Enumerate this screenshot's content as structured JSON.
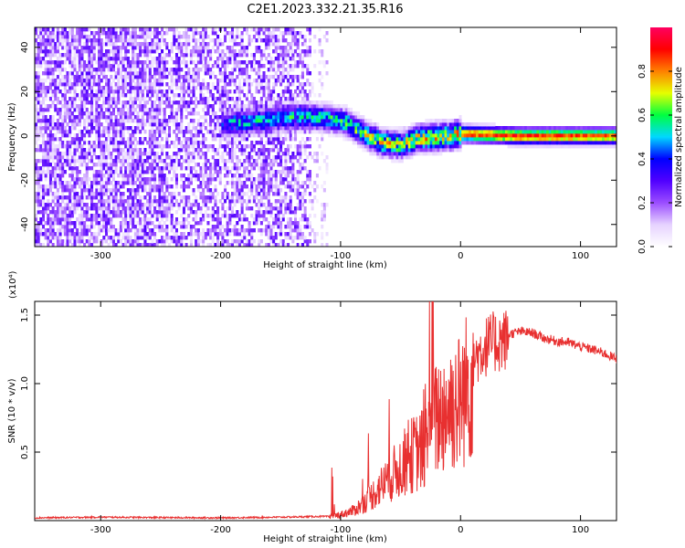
{
  "title": "C2E1.2023.332.21.35.R16",
  "chart_data": [
    {
      "type": "heatmap",
      "xlabel": "Height of straight line (km)",
      "ylabel": "Frequency (Hz)",
      "xlim": [
        -355,
        130
      ],
      "ylim": [
        -50,
        49
      ],
      "x_ticks": [
        -300,
        -200,
        -100,
        0,
        100
      ],
      "y_ticks": [
        40,
        20,
        0,
        -20,
        -40
      ],
      "colorbar": {
        "label": "Normalized spectral amplitude",
        "range": [
          0,
          1
        ],
        "ticks": [
          0.0,
          0.2,
          0.4,
          0.6,
          0.8
        ],
        "colormap": [
          "#ffffff",
          "#e6d2ff",
          "#9b4dff",
          "#5000ff",
          "#0000ff",
          "#00d8ff",
          "#00ff40",
          "#e6ff00",
          "#ff8000",
          "#ff0000",
          "#ff0060"
        ]
      },
      "features": {
        "noise_region_x": [
          -355,
          -125
        ],
        "sparse_region_x": [
          -125,
          -110
        ],
        "empty_region_x": [
          -110,
          -90
        ],
        "signal_track": [
          {
            "x": -200,
            "freq": 5,
            "amp": 0.35
          },
          {
            "x": -190,
            "freq": 6,
            "amp": 0.5
          },
          {
            "x": -130,
            "freq": 9,
            "amp": 0.55
          },
          {
            "x": -110,
            "freq": 8,
            "amp": 0.55
          },
          {
            "x": -95,
            "freq": 6,
            "amp": 0.6
          },
          {
            "x": -80,
            "freq": 1,
            "amp": 0.65
          },
          {
            "x": -65,
            "freq": -3,
            "amp": 0.7
          },
          {
            "x": -50,
            "freq": -4,
            "amp": 0.7
          },
          {
            "x": -35,
            "freq": -1,
            "amp": 0.75
          },
          {
            "x": -10,
            "freq": 0,
            "amp": 0.8
          },
          {
            "x": 0,
            "freq": 1,
            "amp": 0.85
          },
          {
            "x": 50,
            "freq": 0,
            "amp": 0.9
          },
          {
            "x": 130,
            "freq": 0,
            "amp": 0.85
          }
        ]
      }
    },
    {
      "type": "line",
      "xlabel": "Height of straight line (km)",
      "ylabel": "SNR (10 * v/v)",
      "y_scale_label": "(x10⁴)",
      "xlim": [
        -355,
        130
      ],
      "ylim": [
        0,
        1.6
      ],
      "x_ticks": [
        -300,
        -200,
        -100,
        0,
        100
      ],
      "y_ticks": [
        0.5,
        1.0,
        1.5
      ],
      "color": "#e83030",
      "series": [
        {
          "x": [
            -355,
            -300,
            -250,
            -200,
            -150,
            -120,
            -110,
            -100,
            -90,
            -80,
            -70,
            -60,
            -50,
            -40,
            -30,
            -25,
            -20,
            -10,
            0,
            10,
            20,
            30,
            40,
            50,
            60,
            70,
            80,
            90,
            100,
            110,
            120,
            130
          ],
          "y": [
            0.02,
            0.025,
            0.022,
            0.02,
            0.025,
            0.03,
            0.03,
            0.05,
            0.08,
            0.15,
            0.25,
            0.35,
            0.45,
            0.55,
            0.6,
            0.7,
            0.85,
            0.95,
            1.0,
            1.2,
            1.3,
            1.34,
            1.36,
            1.38,
            1.37,
            1.33,
            1.31,
            1.3,
            1.27,
            1.25,
            1.22,
            1.18
          ]
        }
      ]
    }
  ]
}
